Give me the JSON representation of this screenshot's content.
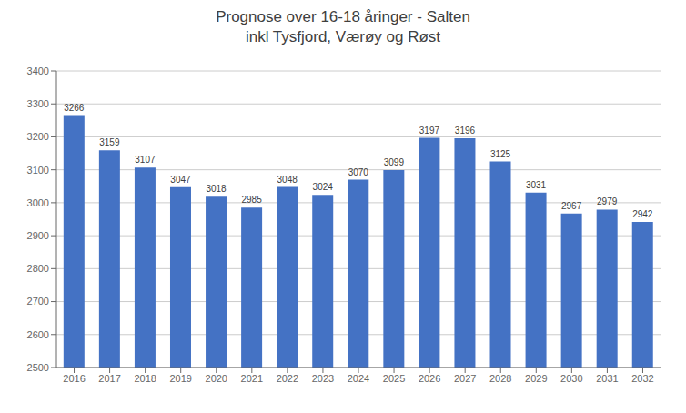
{
  "chart_data": {
    "type": "bar",
    "title": "Prognose over 16-18 åringer - Salten\ninkl Tysfjord, Værøy og Røst",
    "categories": [
      "2016",
      "2017",
      "2018",
      "2019",
      "2020",
      "2021",
      "2022",
      "2023",
      "2024",
      "2025",
      "2026",
      "2027",
      "2028",
      "2029",
      "2030",
      "2031",
      "2032"
    ],
    "values": [
      3266,
      3159,
      3107,
      3047,
      3018,
      2985,
      3048,
      3024,
      3070,
      3099,
      3197,
      3196,
      3125,
      3031,
      2967,
      2979,
      2942
    ],
    "color": "#4472c4",
    "ylim": [
      2500,
      3400
    ],
    "yticks": [
      2500,
      2600,
      2700,
      2800,
      2900,
      3000,
      3100,
      3200,
      3300,
      3400
    ],
    "grid": true,
    "data_labels": true
  }
}
